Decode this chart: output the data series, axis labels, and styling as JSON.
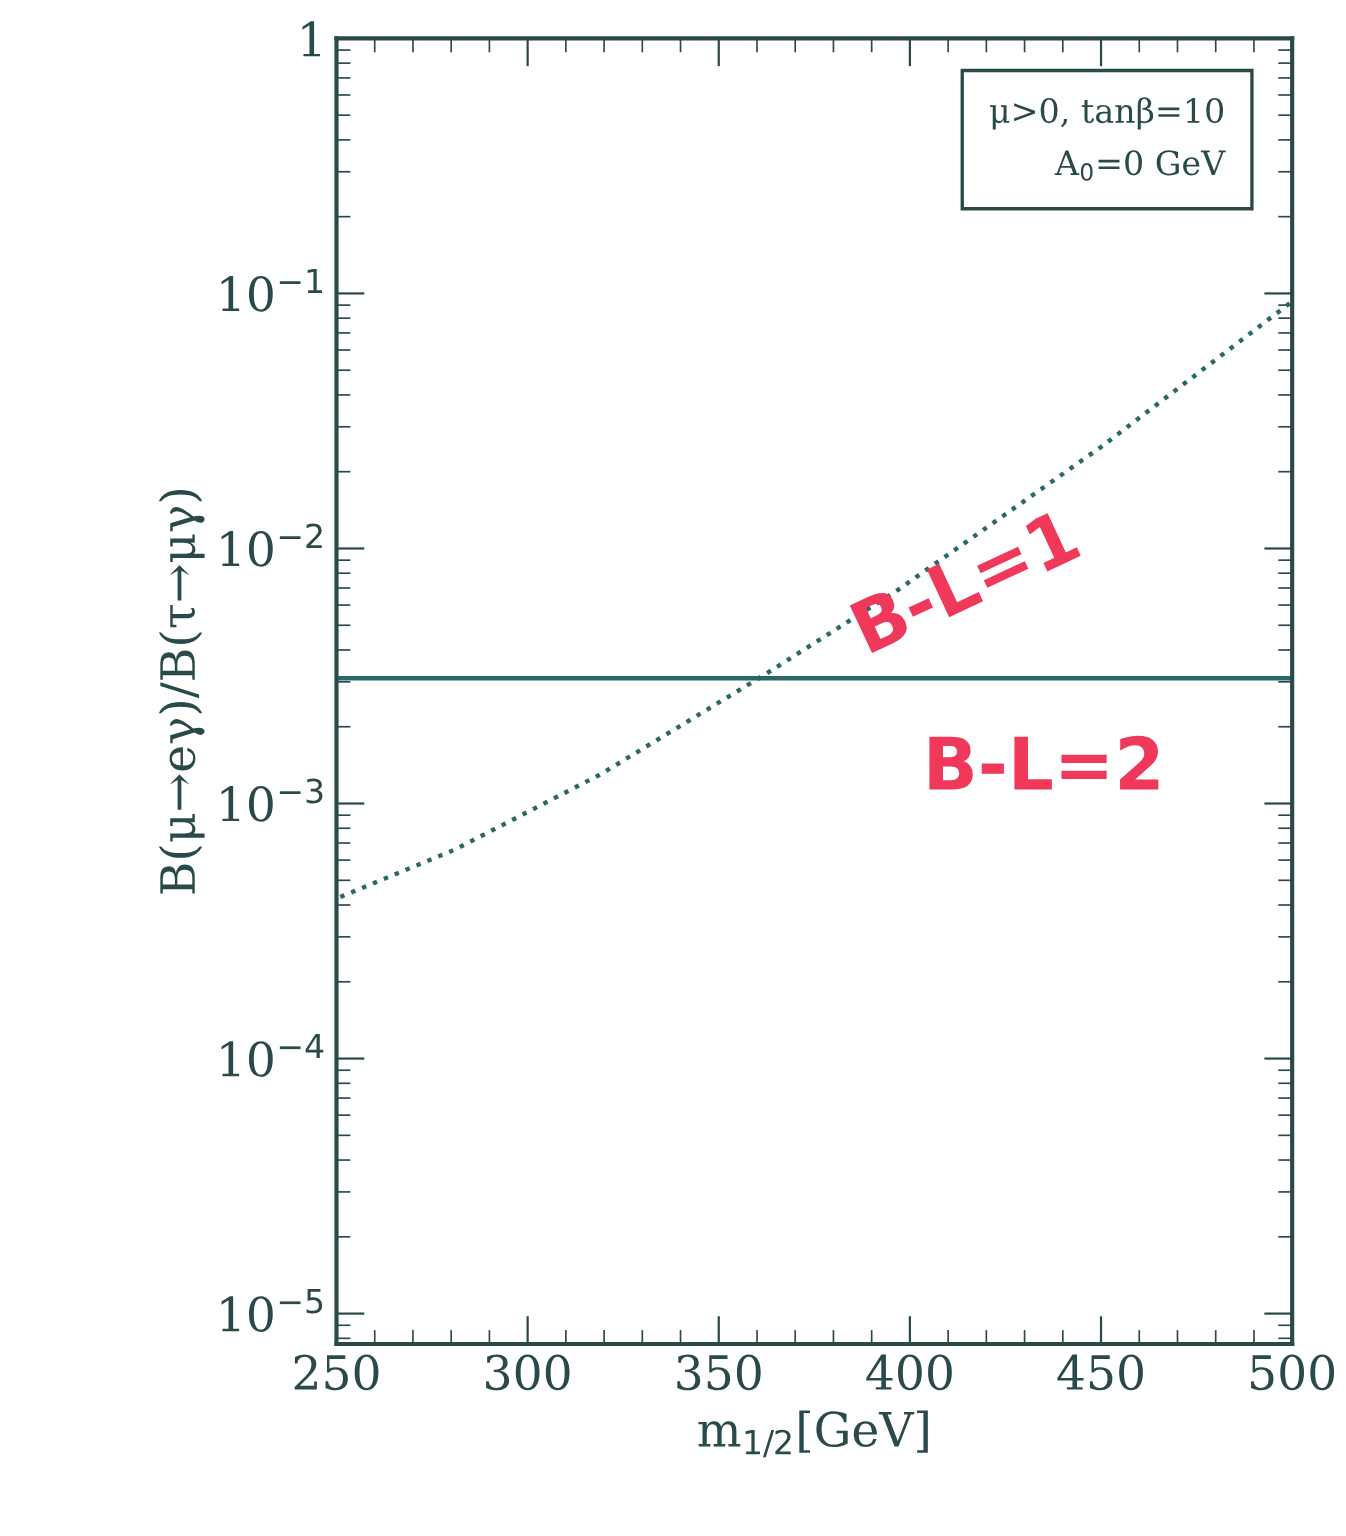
{
  "chart_data": {
    "type": "line",
    "xlabel": "m$_{1/2}$[GeV]",
    "ylabel": "B(μ→eγ)/B(τ→μγ)",
    "log": "y",
    "xlim": [
      250,
      500
    ],
    "xticks": [
      250,
      300,
      350,
      400,
      450,
      500
    ],
    "ylim": [
      7.6e-06,
      1
    ],
    "yticks": [
      {
        "value": 1e-05,
        "label": "10$^{−5}$"
      },
      {
        "value": 0.0001,
        "label": "10$^{−4}$"
      },
      {
        "value": 0.001,
        "label": "10$^{−3}$"
      },
      {
        "value": 0.01,
        "label": "10$^{−2}$"
      },
      {
        "value": 0.1,
        "label": "10$^{−1}$"
      },
      {
        "value": 1,
        "label": "1"
      }
    ],
    "grid": false,
    "legend": false,
    "series": [
      {
        "color": "#2a6868",
        "line_style": "dotted",
        "x": [
          251,
          281,
          319,
          362,
          397,
          450,
          500
        ],
        "values": [
          0.00043,
          0.00066,
          0.0013,
          0.0032,
          0.0069,
          0.025,
          0.093
        ]
      },
      {
        "color": "#2a6868",
        "line_style": "solid",
        "x": [
          250,
          500
        ],
        "values": [
          0.0031,
          0.0031
        ]
      }
    ],
    "annotations": [
      "μ>0, tanβ=10\nA$_{0}$=0 GeV",
      "B-L=1",
      "B-L=2"
    ]
  }
}
